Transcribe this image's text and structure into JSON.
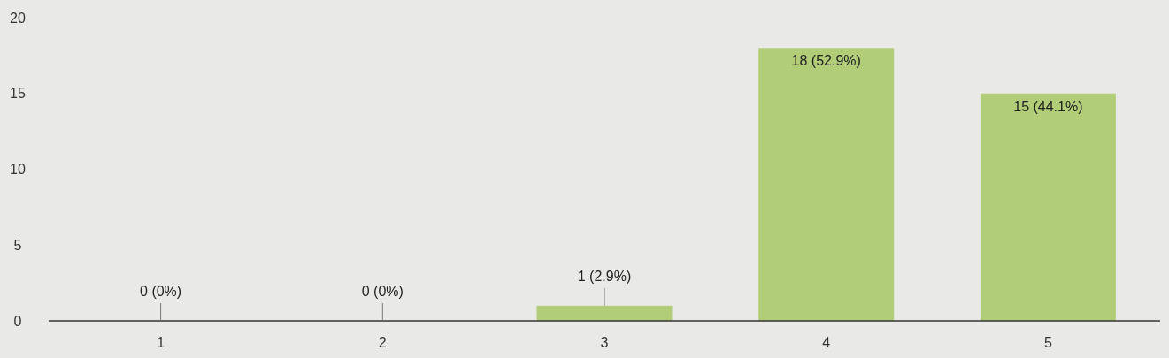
{
  "chart_data": {
    "type": "bar",
    "categories": [
      "1",
      "2",
      "3",
      "4",
      "5"
    ],
    "values": [
      0,
      0,
      1,
      18,
      15
    ],
    "value_labels": [
      "0 (0%)",
      "0 (0%)",
      "1 (2.9%)",
      "18 (52.9%)",
      "15 (44.1%)"
    ],
    "color": "#b2cd78",
    "ylim": [
      0,
      20
    ],
    "yticks": [
      0,
      5,
      10,
      15,
      20
    ],
    "grid": false
  }
}
